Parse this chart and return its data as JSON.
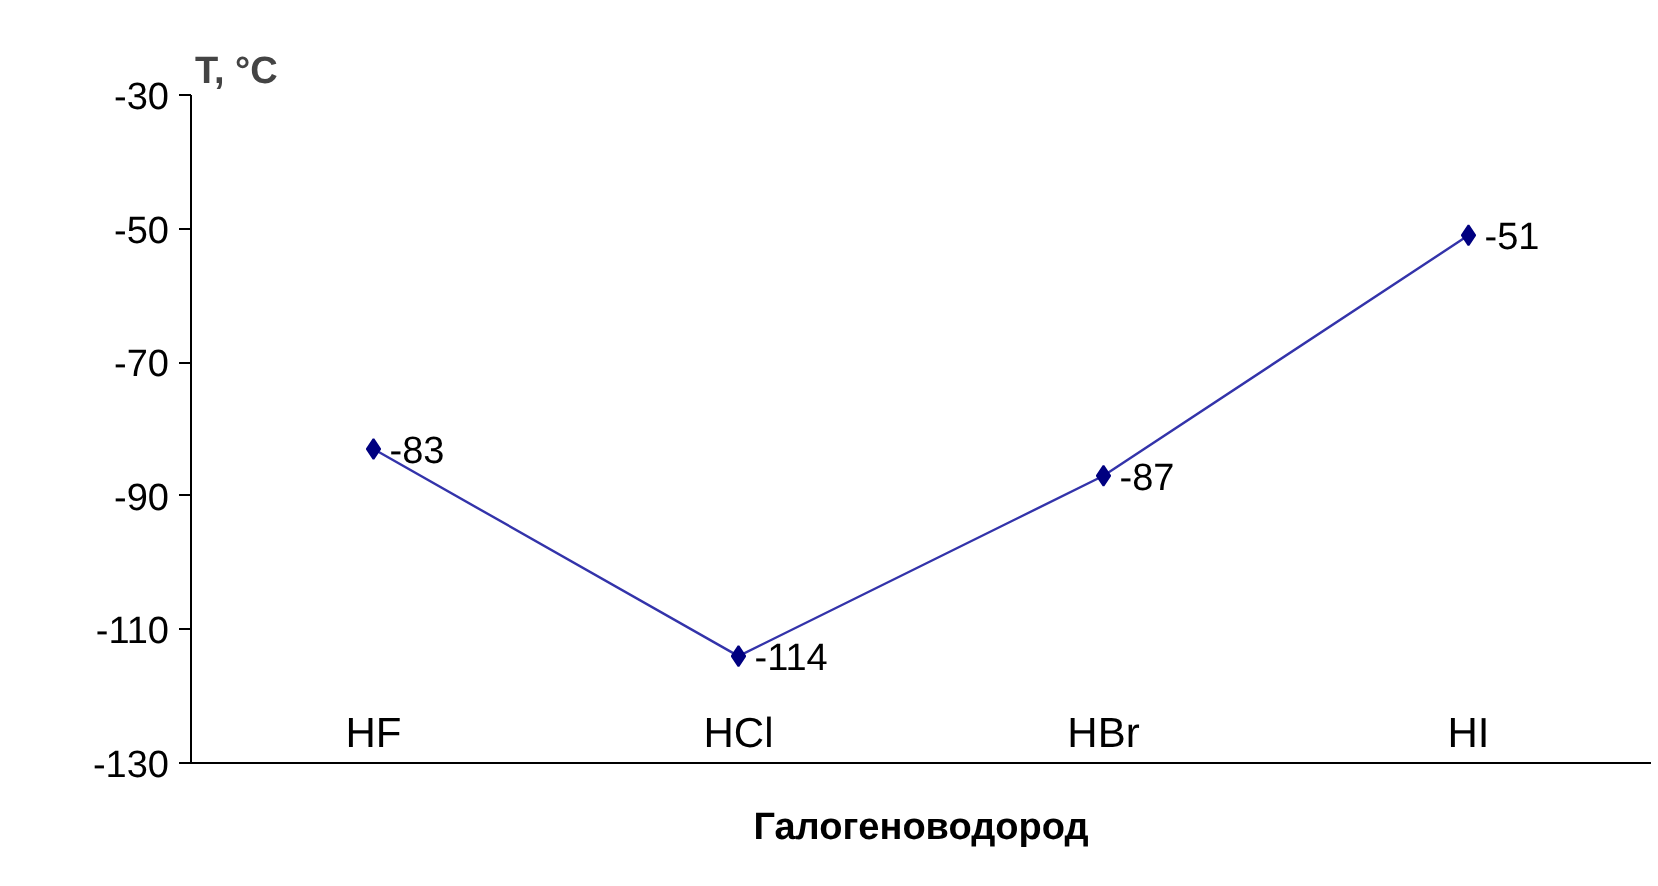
{
  "chart_data": {
    "type": "line",
    "ylabel": "T, °C",
    "xlabel": "Галогеноводород",
    "categories": [
      "HF",
      "HCl",
      "HBr",
      "HI"
    ],
    "series": [
      {
        "color": "#3333aa",
        "values": [
          -83,
          -114,
          -87,
          -51
        ]
      }
    ],
    "ylim": [
      -130,
      -30
    ],
    "yticks": [
      -130,
      -110,
      -90,
      -70,
      -50,
      -30
    ],
    "data_labels": true,
    "marker": "diamond",
    "grid": false
  }
}
